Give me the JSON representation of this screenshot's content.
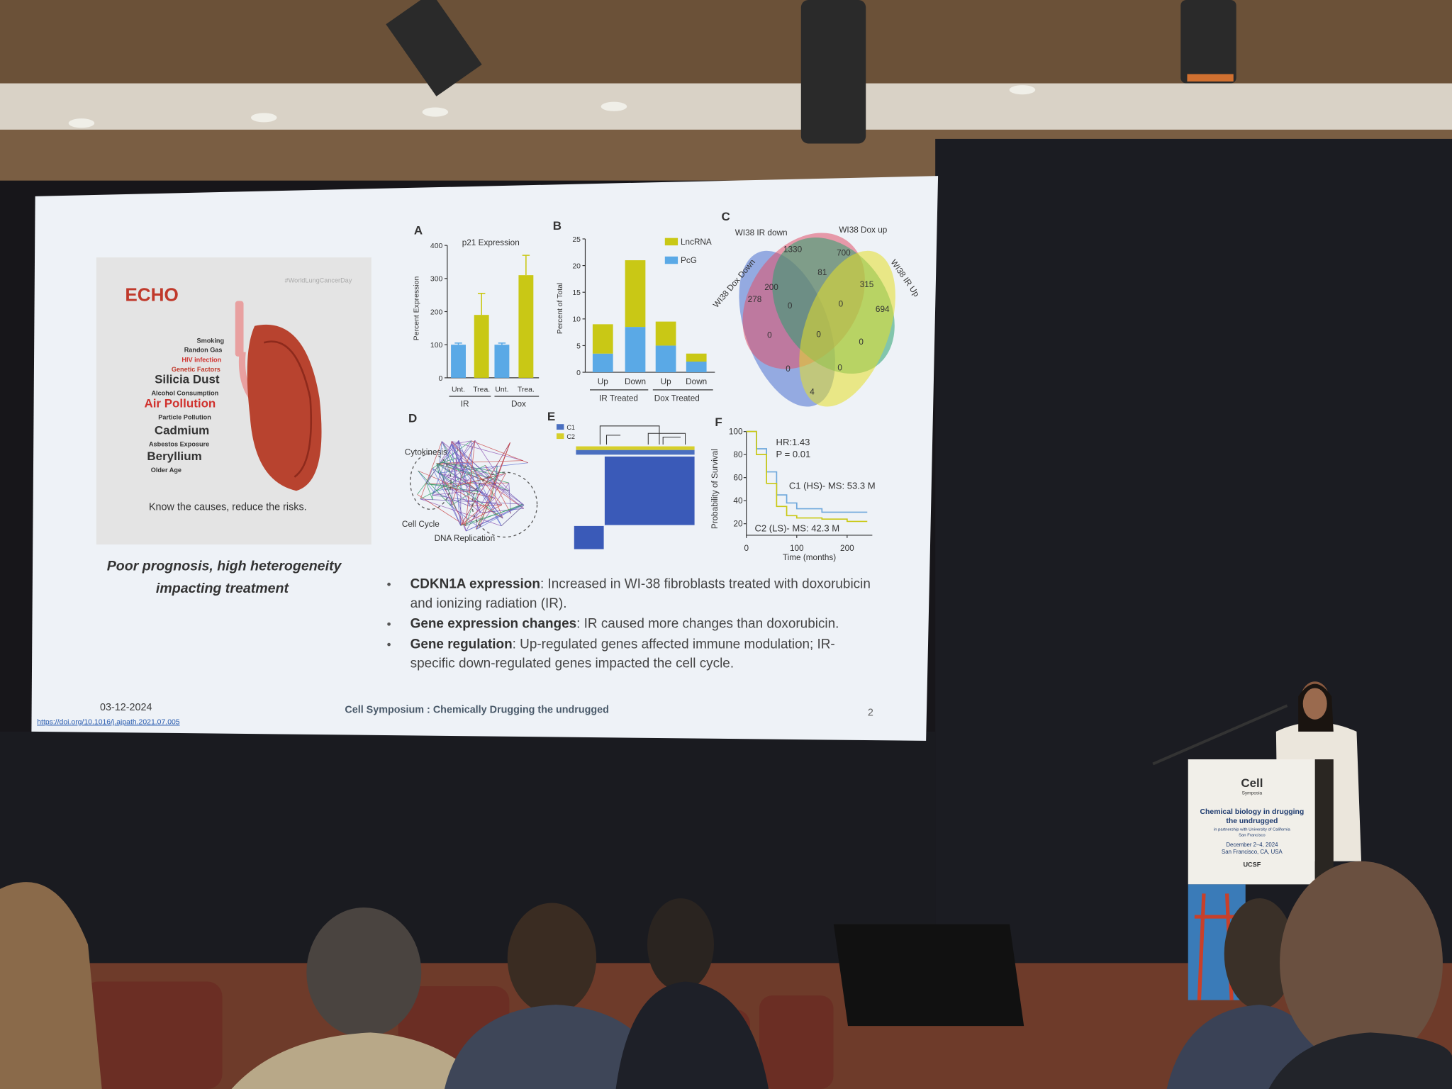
{
  "slide": {
    "infographic": {
      "logo": "ECHO",
      "hashtag": "#WorldLungCancerDay",
      "factors": [
        {
          "text": "Smoking"
        },
        {
          "text": "Randon Gas"
        },
        {
          "text": "HIV infection",
          "color": "#d0312d"
        },
        {
          "text": "Genetic Factors",
          "color": "#c0392b"
        },
        {
          "text": "Silicia Dust",
          "size": "large"
        },
        {
          "text": "Alcohol Consumption"
        },
        {
          "text": "Air Pollution",
          "size": "large",
          "color": "#d0312d"
        },
        {
          "text": "Particle Pollution"
        },
        {
          "text": "Cadmium",
          "size": "large"
        },
        {
          "text": "Asbestos Exposure"
        },
        {
          "text": "Beryllium",
          "size": "large"
        },
        {
          "text": "Older Age"
        }
      ],
      "tagline": "Know the causes, reduce the risks."
    },
    "caption": [
      "Poor prognosis, high heterogeneity",
      "impacting treatment"
    ],
    "panel_a": {
      "label": "A",
      "title": "p21 Expression",
      "ylabel": "Percent Expression",
      "categories": [
        "Unt.",
        "Trea.",
        "Unt.",
        "Trea."
      ],
      "groups": [
        "IR",
        "Dox"
      ],
      "values": [
        100,
        190,
        100,
        310
      ],
      "errors": [
        5,
        65,
        5,
        60
      ],
      "colors": [
        "#5aa9e6",
        "#c9c815",
        "#5aa9e6",
        "#c9c815"
      ],
      "ylim": [
        0,
        400
      ],
      "yticks": [
        0,
        100,
        200,
        300,
        400
      ]
    },
    "panel_b": {
      "label": "B",
      "ylabel": "Percent of Total",
      "categories": [
        "Up",
        "Down",
        "Up",
        "Down"
      ],
      "groups": [
        "IR Treated",
        "Dox Treated"
      ],
      "series": [
        {
          "name": "PcG",
          "color": "#5aa9e6",
          "values": [
            3.5,
            8.5,
            5,
            2
          ]
        },
        {
          "name": "LncRNA",
          "color": "#c9c815",
          "values": [
            5.5,
            12.5,
            4.5,
            1.5
          ]
        }
      ],
      "ylim": [
        0,
        25
      ],
      "yticks": [
        0,
        5,
        10,
        15,
        20,
        25
      ]
    },
    "panel_c": {
      "label": "C",
      "sets": [
        "WI38 IR down",
        "WI38 Dox  up",
        "WI38 Dox Down",
        "WI38 IR Up"
      ],
      "regions": [
        1330,
        700,
        81,
        200,
        315,
        278,
        0,
        0,
        694,
        0,
        0,
        0,
        0,
        0,
        4
      ]
    },
    "panel_d": {
      "label": "D",
      "terms": [
        "Cytokinesis",
        "Cell Cycle",
        "DNA Replication"
      ]
    },
    "panel_e": {
      "label": "E",
      "legend": [
        {
          "name": "C1",
          "color": "#4a6fc0"
        },
        {
          "name": "C2",
          "color": "#d6cf2a"
        }
      ]
    },
    "panel_f": {
      "label": "F",
      "ylabel": "Probability of Survival",
      "xlabel": "Time (months)",
      "annotations": [
        "HR:1.43",
        "P = 0.01",
        "C1 (HS)- MS: 53.3 M",
        "C2 (LS)- MS: 42.3 M"
      ],
      "x": [
        0,
        20,
        40,
        60,
        80,
        100,
        150,
        200,
        240
      ],
      "series": [
        {
          "color": "#6fa8dc",
          "values": [
            100,
            85,
            65,
            45,
            38,
            33,
            30,
            30,
            30
          ]
        },
        {
          "color": "#c9c815",
          "values": [
            100,
            80,
            55,
            35,
            27,
            25,
            24,
            22,
            22
          ]
        }
      ],
      "xlim": [
        0,
        250
      ],
      "xticks": [
        0,
        100,
        200
      ],
      "ylim": [
        10,
        100
      ],
      "yticks": [
        20,
        40,
        60,
        80,
        100
      ]
    },
    "bullets": [
      {
        "term": "CDKN1A expression",
        "lines": [
          ": Increased in WI-38 fibroblasts treated with doxorubicin",
          "and ionizing radiation (IR)."
        ]
      },
      {
        "term": "Gene expression changes",
        "lines": [
          ": IR caused more changes than doxorubicin."
        ]
      },
      {
        "term": "Gene regulation",
        "lines": [
          ": Up-regulated genes affected immune modulation; IR-",
          "specific down-regulated genes impacted the cell cycle."
        ]
      }
    ],
    "footer": {
      "date": "03-12-2024",
      "doi": "https://doi.org/10.1016/j.ajpath.2021.07.005",
      "event": "Cell Symposium : Chemically Drugging the undrugged",
      "page": "2"
    }
  },
  "podium": {
    "brand": "Cell",
    "brand_sub": "Symposia",
    "title": [
      "Chemical biology in drugging",
      "the undrugged"
    ],
    "partner": [
      "in partnership with University of California",
      "San Francisco"
    ],
    "dates": "December 2–4, 2024",
    "place": "San Francisco, CA, USA",
    "logo": "UCSF"
  }
}
